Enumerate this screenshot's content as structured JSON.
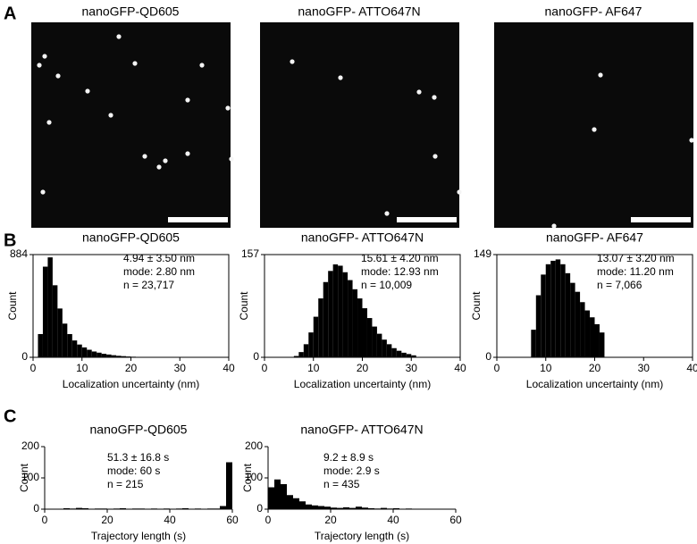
{
  "panel_labels": [
    "A",
    "B",
    "C"
  ],
  "images": [
    {
      "title": "nanoGFP-QD605"
    },
    {
      "title": "nanoGFP- ATTO647N"
    },
    {
      "title": "nanoGFP- AF647"
    }
  ],
  "chart_data": [
    {
      "type": "histogram",
      "title": "nanoGFP-QD605",
      "x_label": "Localization uncertainty (nm)",
      "y_label": "Count",
      "annotations": [
        "4.94 ± 3.50 nm",
        "mode: 2.80 nm",
        "n = 23,717"
      ],
      "bins": [
        1,
        2,
        3,
        4,
        5,
        6,
        7,
        8,
        9,
        10,
        11,
        12,
        13,
        14,
        15,
        16,
        17,
        18,
        19,
        20,
        21,
        22
      ],
      "values": [
        200,
        780,
        860,
        620,
        420,
        290,
        200,
        145,
        110,
        85,
        65,
        50,
        40,
        30,
        24,
        18,
        13,
        10,
        7,
        5,
        3
      ],
      "color": "#000000",
      "xlim": [
        0,
        40
      ],
      "ylim": [
        0,
        884
      ],
      "xticks": [
        0,
        10,
        20,
        30,
        40
      ],
      "yticks": [
        0,
        884
      ]
    },
    {
      "type": "histogram",
      "title": "nanoGFP- ATTO647N",
      "x_label": "Localization uncertainty (nm)",
      "y_label": "Count",
      "annotations": [
        "15.61 ± 4.20 nm",
        "mode: 12.93 nm",
        "n = 10,009"
      ],
      "bins": [
        6,
        7,
        8,
        9,
        10,
        11,
        12,
        13,
        14,
        15,
        16,
        17,
        18,
        19,
        20,
        21,
        22,
        23,
        24,
        25,
        26,
        27,
        28,
        29,
        30,
        31
      ],
      "values": [
        2,
        8,
        20,
        38,
        62,
        90,
        115,
        132,
        142,
        140,
        130,
        118,
        104,
        90,
        75,
        60,
        47,
        36,
        27,
        20,
        14,
        10,
        7,
        5,
        3
      ],
      "color": "#000000",
      "xlim": [
        0,
        40
      ],
      "ylim": [
        0,
        157
      ],
      "xticks": [
        0,
        10,
        20,
        30,
        40
      ],
      "yticks": [
        0,
        157
      ]
    },
    {
      "type": "histogram",
      "title": "nanoGFP- AF647",
      "x_label": "Localization uncertainty (nm)",
      "y_label": "Count",
      "annotations": [
        "13.07 ± 3.20 nm",
        "mode: 11.20 nm",
        "n = 7,066"
      ],
      "bins": [
        7,
        8,
        9,
        10,
        11,
        12,
        13,
        14,
        15,
        16,
        17,
        18,
        19,
        20,
        21,
        22
      ],
      "values": [
        40,
        90,
        120,
        135,
        140,
        142,
        135,
        122,
        108,
        95,
        80,
        68,
        58,
        48,
        36
      ],
      "color": "#000000",
      "xlim": [
        0,
        40
      ],
      "ylim": [
        0,
        149
      ],
      "xticks": [
        0,
        10,
        20,
        30,
        40
      ],
      "yticks": [
        0,
        149
      ]
    },
    {
      "type": "histogram",
      "title": "nanoGFP-QD605",
      "x_label": "Trajectory length (s)",
      "y_label": "Count",
      "annotations": [
        "51.3 ± 16.8 s",
        "mode: 60 s",
        "n = 215"
      ],
      "bins": [
        0,
        2,
        4,
        6,
        8,
        10,
        12,
        14,
        16,
        18,
        20,
        22,
        24,
        26,
        28,
        30,
        32,
        34,
        36,
        38,
        40,
        42,
        44,
        46,
        48,
        50,
        52,
        54,
        56,
        58,
        60
      ],
      "values": [
        0,
        0,
        1,
        3,
        2,
        4,
        3,
        1,
        2,
        2,
        1,
        2,
        3,
        1,
        2,
        2,
        1,
        2,
        1,
        2,
        1,
        2,
        3,
        1,
        2,
        1,
        2,
        2,
        10,
        150
      ],
      "color": "#000000",
      "xlim": [
        0,
        60
      ],
      "ylim": [
        0,
        200
      ],
      "xticks": [
        0,
        20,
        40,
        60
      ],
      "yticks": [
        0,
        100,
        200
      ]
    },
    {
      "type": "histogram",
      "title": "nanoGFP- ATTO647N",
      "x_label": "Trajectory length (s)",
      "y_label": "Count",
      "annotations": [
        "9.2 ± 8.9 s",
        "mode: 2.9 s",
        "n = 435"
      ],
      "bins": [
        0,
        2,
        4,
        6,
        8,
        10,
        12,
        14,
        16,
        18,
        20,
        22,
        24,
        26,
        28,
        30,
        32,
        34,
        36,
        38,
        40,
        42,
        44,
        46,
        48,
        50,
        52,
        54,
        56,
        58,
        60
      ],
      "values": [
        70,
        95,
        80,
        45,
        35,
        25,
        15,
        12,
        10,
        8,
        5,
        4,
        6,
        4,
        8,
        5,
        3,
        2,
        4,
        2,
        3,
        1,
        2,
        1,
        0,
        1,
        0,
        0,
        0,
        0
      ],
      "color": "#000000",
      "xlim": [
        0,
        60
      ],
      "ylim": [
        0,
        200
      ],
      "xticks": [
        0,
        20,
        40,
        60
      ],
      "yticks": [
        0,
        100,
        200
      ]
    }
  ]
}
